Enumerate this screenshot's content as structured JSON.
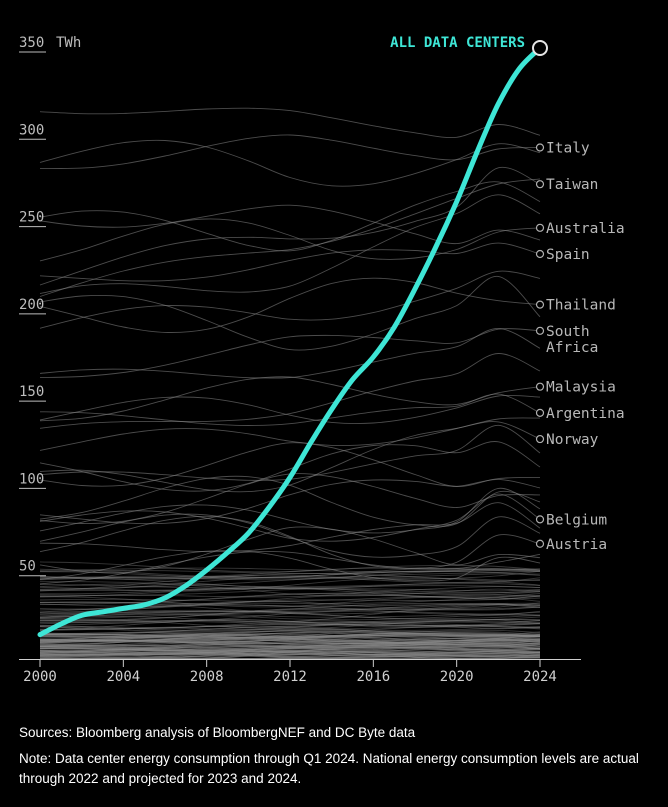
{
  "chart_data": {
    "type": "line",
    "unit": "TWh",
    "y_ticks": [
      50,
      100,
      150,
      200,
      250,
      300,
      350
    ],
    "x_ticks": [
      2000,
      2004,
      2008,
      2012,
      2016,
      2020,
      2024
    ],
    "xlim": [
      2000,
      2024
    ],
    "ylim": [
      0,
      350
    ],
    "grid": false,
    "highlight_series": {
      "name": "ALL DATA CENTERS",
      "color": "#3ee6d6",
      "x": [
        2000,
        2001,
        2002,
        2003,
        2004,
        2005,
        2006,
        2007,
        2008,
        2009,
        2010,
        2011,
        2012,
        2013,
        2014,
        2015,
        2016,
        2017,
        2018,
        2019,
        2020,
        2021,
        2022,
        2023,
        2024
      ],
      "y": [
        14,
        20,
        25,
        27,
        29,
        31,
        35,
        42,
        51,
        61,
        72,
        87,
        104,
        124,
        143,
        160,
        173,
        190,
        212,
        236,
        262,
        291,
        318,
        338,
        350
      ]
    },
    "labeled_countries": [
      {
        "name": "Italy",
        "y2024": 293
      },
      {
        "name": "Taiwan",
        "y2024": 272
      },
      {
        "name": "Australia",
        "y2024": 247
      },
      {
        "name": "Spain",
        "y2024": 232
      },
      {
        "name": "Thailand",
        "y2024": 203
      },
      {
        "name": "South Africa",
        "y2024": 188
      },
      {
        "name": "Malaysia",
        "y2024": 156
      },
      {
        "name": "Argentina",
        "y2024": 141
      },
      {
        "name": "Norway",
        "y2024": 126
      },
      {
        "name": "Belgium",
        "y2024": 80
      },
      {
        "name": "Austria",
        "y2024": 66
      }
    ],
    "background_series_color": "#8a8a8a"
  },
  "footer": {
    "sources": "Sources: Bloomberg analysis of BloombergNEF and DC Byte data",
    "note": "Note: Data center energy consumption through Q1 2024. National energy consumption levels are actual through 2022 and projected for 2023 and 2024."
  }
}
